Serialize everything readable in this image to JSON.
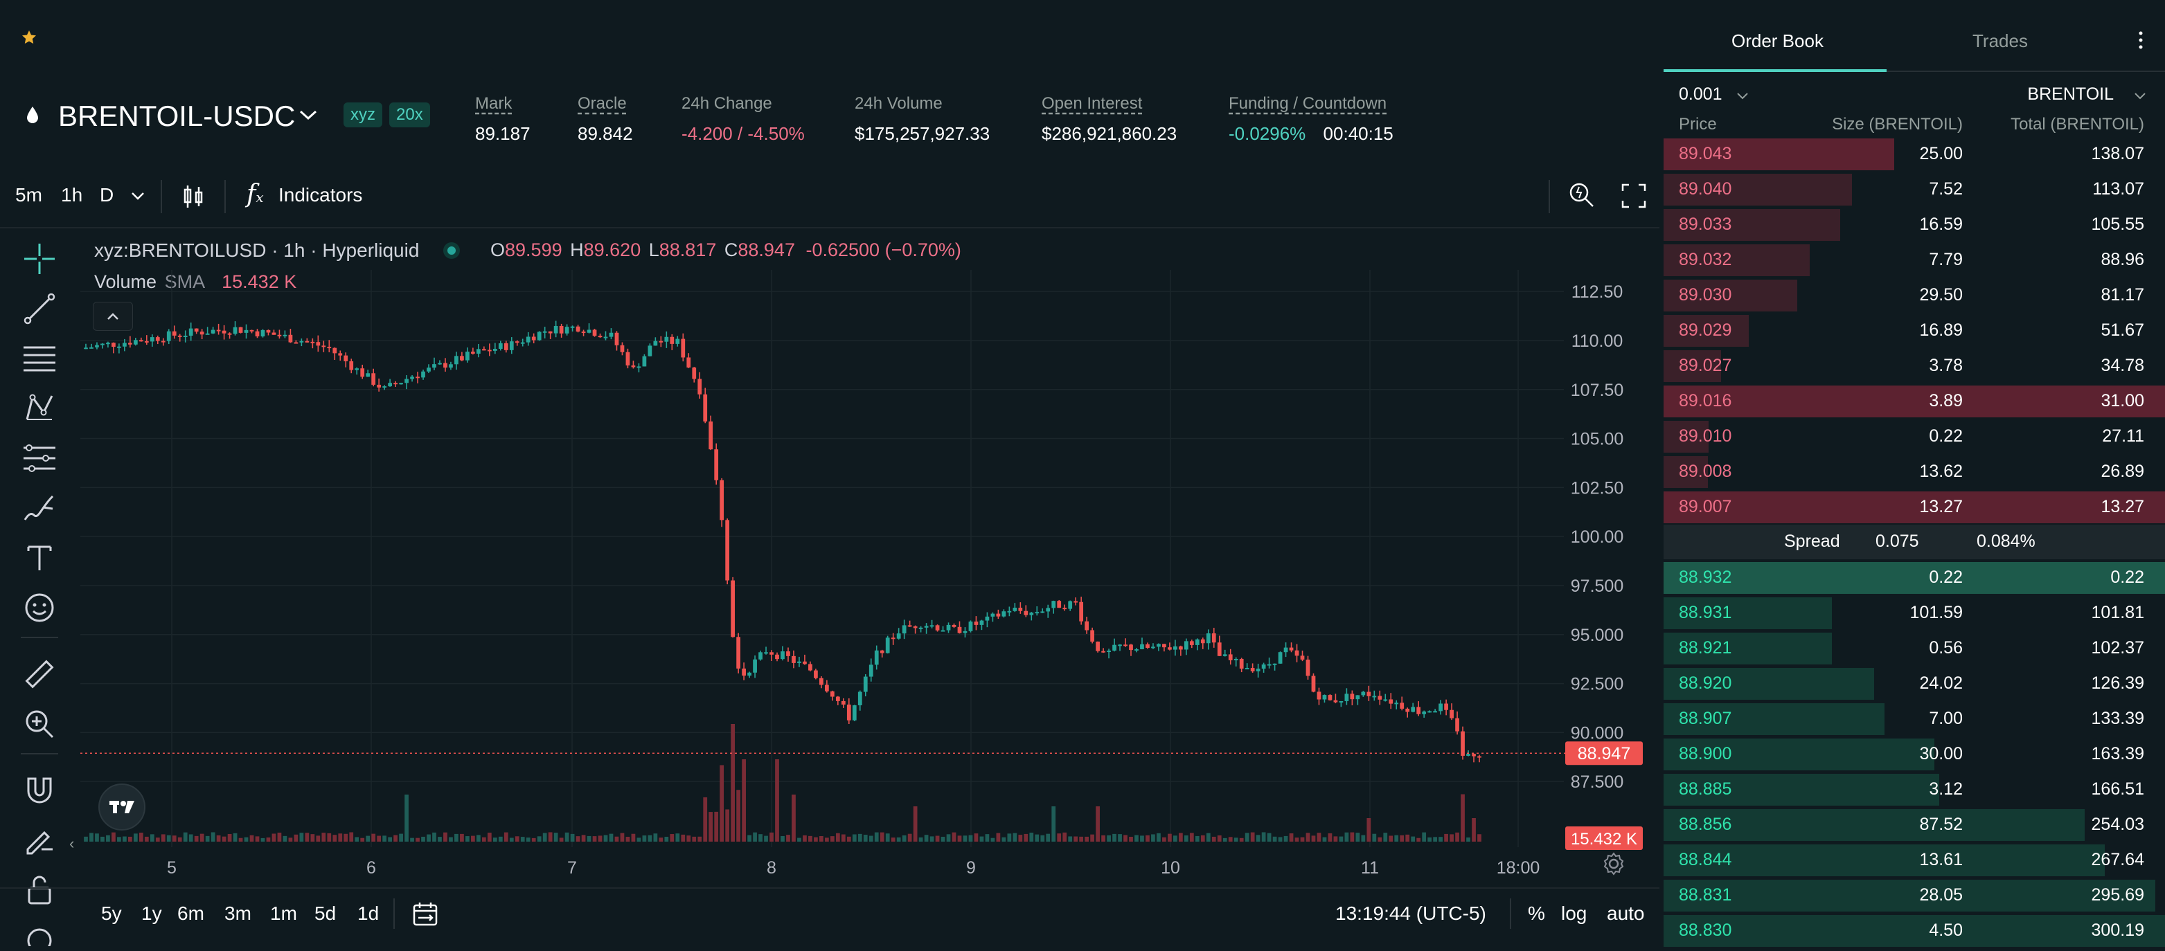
{
  "market": {
    "symbol": "BRENTOIL-USDC",
    "dex_tag": "xyz",
    "leverage": "20x",
    "stats": [
      {
        "label": "Mark",
        "value": "89.187",
        "dotted": true,
        "color": "white"
      },
      {
        "label": "Oracle",
        "value": "89.842",
        "dotted": true,
        "color": "white"
      },
      {
        "label": "24h Change",
        "value": "-4.200 / -4.50%",
        "dotted": false,
        "color": "red"
      },
      {
        "label": "24h Volume",
        "value": "$175,257,927.33",
        "dotted": false,
        "color": "white"
      },
      {
        "label": "Open Interest",
        "value": "$286,921,860.23",
        "dotted": true,
        "color": "white"
      },
      {
        "label": "Funding / Countdown",
        "value": "-0.0296%",
        "value2": "00:40:15",
        "dotted": true,
        "color": "teal"
      }
    ]
  },
  "chart_toolbar": {
    "intervals": [
      "5m",
      "1h",
      "D"
    ],
    "active_interval": "1h",
    "indicators_label": "Indicators"
  },
  "chart_legend": {
    "title": "xyz:BRENTOILUSD · 1h · Hyperliquid",
    "o_label": "O",
    "o": "89.599",
    "h_label": "H",
    "h": "89.620",
    "l_label": "L",
    "l": "88.817",
    "c_label": "C",
    "c": "88.947",
    "change": "-0.62500 (−0.70%)",
    "volume_label": "Volume",
    "sma_label": "SMA",
    "volume_value": "15.432 K"
  },
  "chart_data": {
    "type": "candlestick",
    "y_ticks": [
      "112.50",
      "110.00",
      "107.50",
      "105.00",
      "102.50",
      "100.00",
      "97.500",
      "95.000",
      "92.500",
      "90.000",
      "87.500"
    ],
    "x_ticks": [
      "5",
      "6",
      "7",
      "8",
      "9",
      "10",
      "11",
      "18:00"
    ],
    "ylim": [
      86.2,
      113.6
    ],
    "last_price_label": "88.947",
    "last_price": 88.947,
    "volume_label": "15.432 K",
    "anchors": [
      [
        0,
        109.6
      ],
      [
        10,
        110.0
      ],
      [
        20,
        110.4
      ],
      [
        28,
        110.6
      ],
      [
        35,
        110.3
      ],
      [
        40,
        110.0
      ],
      [
        45,
        109.6
      ],
      [
        50,
        108.5
      ],
      [
        55,
        107.5
      ],
      [
        60,
        108.2
      ],
      [
        66,
        108.8
      ],
      [
        72,
        109.4
      ],
      [
        78,
        109.8
      ],
      [
        84,
        110.5
      ],
      [
        90,
        110.7
      ],
      [
        96,
        110.2
      ],
      [
        100,
        108.5
      ],
      [
        104,
        110.0
      ],
      [
        108,
        109.9
      ],
      [
        112,
        107.5
      ],
      [
        114,
        104.5
      ],
      [
        116,
        101.0
      ],
      [
        117,
        98.0
      ],
      [
        118,
        95.0
      ],
      [
        119,
        93.5
      ],
      [
        120,
        93.0
      ],
      [
        124,
        94.2
      ],
      [
        128,
        93.8
      ],
      [
        132,
        93.2
      ],
      [
        136,
        92.0
      ],
      [
        139,
        90.8
      ],
      [
        141,
        92.0
      ],
      [
        144,
        94.0
      ],
      [
        148,
        95.2
      ],
      [
        152,
        95.6
      ],
      [
        158,
        95.2
      ],
      [
        164,
        95.7
      ],
      [
        168,
        96.3
      ],
      [
        172,
        96.1
      ],
      [
        176,
        96.5
      ],
      [
        180,
        96.6
      ],
      [
        182,
        95.2
      ],
      [
        185,
        93.9
      ],
      [
        188,
        94.4
      ],
      [
        192,
        94.3
      ],
      [
        196,
        94.3
      ],
      [
        200,
        94.5
      ],
      [
        204,
        94.9
      ],
      [
        206,
        93.9
      ],
      [
        210,
        93.4
      ],
      [
        214,
        93.3
      ],
      [
        218,
        94.2
      ],
      [
        221,
        93.6
      ],
      [
        223,
        92.1
      ],
      [
        226,
        91.6
      ],
      [
        230,
        91.9
      ],
      [
        234,
        92.0
      ],
      [
        238,
        91.5
      ],
      [
        242,
        91.1
      ],
      [
        246,
        91.3
      ],
      [
        249,
        90.2
      ],
      [
        250,
        88.9
      ],
      [
        252,
        88.95
      ]
    ],
    "volume_spikes": [
      [
        115,
        0.65
      ],
      [
        117,
        1.0
      ],
      [
        119,
        0.7
      ],
      [
        125,
        0.7
      ],
      [
        128,
        0.4
      ],
      [
        58,
        0.4
      ],
      [
        150,
        0.3
      ],
      [
        175,
        0.3
      ],
      [
        183,
        0.3
      ],
      [
        232,
        0.2
      ],
      [
        251,
        0.2
      ]
    ]
  },
  "range_bar": {
    "ranges": [
      "5y",
      "1y",
      "6m",
      "3m",
      "1m",
      "5d",
      "1d"
    ],
    "time": "13:19:44 (UTC-5)",
    "pct": "%",
    "log": "log",
    "auto": "auto"
  },
  "orderbook": {
    "tabs": [
      "Order Book",
      "Trades"
    ],
    "active_tab": "Order Book",
    "tick": "0.001",
    "unit": "BRENTOIL",
    "headers": {
      "price": "Price",
      "size": "Size (BRENTOIL)",
      "total": "Total (BRENTOIL)"
    },
    "asks": [
      {
        "price": "89.043",
        "size": "25.00",
        "total": "138.07",
        "depth": 0.46,
        "hl": true
      },
      {
        "price": "89.040",
        "size": "7.52",
        "total": "113.07",
        "depth": 0.375,
        "hl": false
      },
      {
        "price": "89.033",
        "size": "16.59",
        "total": "105.55",
        "depth": 0.352,
        "hl": false
      },
      {
        "price": "89.032",
        "size": "7.79",
        "total": "88.96",
        "depth": 0.291,
        "hl": false
      },
      {
        "price": "89.030",
        "size": "29.50",
        "total": "81.17",
        "depth": 0.266,
        "hl": false
      },
      {
        "price": "89.029",
        "size": "16.89",
        "total": "51.67",
        "depth": 0.17,
        "hl": false
      },
      {
        "price": "89.027",
        "size": "3.78",
        "total": "34.78",
        "depth": 0.115,
        "hl": false
      },
      {
        "price": "89.016",
        "size": "3.89",
        "total": "31.00",
        "depth": 1.0,
        "hl": true
      },
      {
        "price": "89.010",
        "size": "0.22",
        "total": "27.11",
        "depth": 0.09,
        "hl": false
      },
      {
        "price": "89.008",
        "size": "13.62",
        "total": "26.89",
        "depth": 0.088,
        "hl": false
      },
      {
        "price": "89.007",
        "size": "13.27",
        "total": "13.27",
        "depth": 1.0,
        "hl": true
      }
    ],
    "spread": {
      "label": "Spread",
      "value": "0.075",
      "pct": "0.084%"
    },
    "bids": [
      {
        "price": "88.932",
        "size": "0.22",
        "total": "0.22",
        "depth": 1.0,
        "hl": true
      },
      {
        "price": "88.931",
        "size": "101.59",
        "total": "101.81",
        "depth": 0.336,
        "hl": false
      },
      {
        "price": "88.921",
        "size": "0.56",
        "total": "102.37",
        "depth": 0.336,
        "hl": false
      },
      {
        "price": "88.920",
        "size": "24.02",
        "total": "126.39",
        "depth": 0.42,
        "hl": false
      },
      {
        "price": "88.907",
        "size": "7.00",
        "total": "133.39",
        "depth": 0.44,
        "hl": false
      },
      {
        "price": "88.900",
        "size": "30.00",
        "total": "163.39",
        "depth": 0.54,
        "hl": false
      },
      {
        "price": "88.885",
        "size": "3.12",
        "total": "166.51",
        "depth": 0.55,
        "hl": false
      },
      {
        "price": "88.856",
        "size": "87.52",
        "total": "254.03",
        "depth": 0.84,
        "hl": false
      },
      {
        "price": "88.844",
        "size": "13.61",
        "total": "267.64",
        "depth": 0.88,
        "hl": false
      },
      {
        "price": "88.831",
        "size": "28.05",
        "total": "295.69",
        "depth": 0.98,
        "hl": false
      },
      {
        "price": "88.830",
        "size": "4.50",
        "total": "300.19",
        "depth": 1.0,
        "hl": false
      }
    ]
  },
  "colors": {
    "up": "#26a69a",
    "down": "#ef5350",
    "ask_bar": "#3a2029",
    "ask_bar_hl": "#5c2230",
    "bid_bar": "#133a33",
    "bid_bar_hl": "#1d5a4b",
    "teal": "#50d2c1"
  }
}
